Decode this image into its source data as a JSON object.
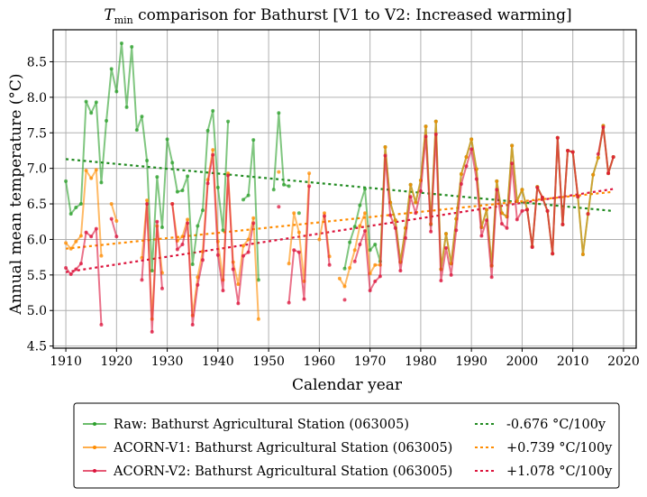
{
  "chart_data": {
    "type": "line",
    "title_main": "T",
    "title_sub": "min",
    "title_rest": " comparison for Bathurst   [V1 to V2: Increased warming]",
    "xlabel": "Calendar year",
    "ylabel": "Annual mean temperature (°C)",
    "xlim": [
      1907.5,
      2022.5
    ],
    "ylim": [
      4.47,
      8.95
    ],
    "xticks": [
      1910,
      1920,
      1930,
      1940,
      1950,
      1960,
      1970,
      1980,
      1990,
      2000,
      2010,
      2020
    ],
    "yticks": [
      4.5,
      5.0,
      5.5,
      6.0,
      6.5,
      7.0,
      7.5,
      8.0,
      8.5
    ],
    "ytick_labels": [
      "4.5",
      "5.0",
      "5.5",
      "6.0",
      "6.5",
      "7.0",
      "7.5",
      "8.0",
      "8.5"
    ],
    "grid": true,
    "legend_position": "below",
    "series": [
      {
        "name": "Raw: Bathurst Agricultural Station (063005)",
        "color": "#2ca02c",
        "x": [
          1910,
          1911,
          1912,
          1913,
          1914,
          1915,
          1916,
          1917,
          1918,
          1919,
          1920,
          1921,
          1922,
          1923,
          1924,
          1925,
          1926,
          1927,
          1928,
          1929,
          1930,
          1931,
          1932,
          1933,
          1934,
          1935,
          1936,
          1937,
          1938,
          1939,
          1940,
          1941,
          1942,
          null,
          1945,
          1946,
          1947,
          1948,
          null,
          1951,
          1952,
          1953,
          1954,
          null,
          1956,
          null,
          1965,
          1966,
          1967,
          1968,
          1969,
          1970,
          1971,
          1972,
          1973,
          1974,
          1975,
          1976,
          1977,
          1978,
          1979,
          1980,
          1981,
          1982,
          1983,
          1984,
          1985,
          1986,
          1987,
          1988,
          1989,
          1990,
          1991,
          1992,
          1993,
          1994,
          1995,
          1996,
          1997,
          1998,
          1999,
          2000,
          2001,
          2002,
          2003,
          2004,
          2005,
          2006,
          2007,
          2008,
          2009,
          2010,
          2011,
          2012,
          2013,
          2014,
          2015,
          2016,
          2017,
          2018
        ],
        "values": [
          6.82,
          6.36,
          6.45,
          6.5,
          7.94,
          7.78,
          7.93,
          6.8,
          7.67,
          8.4,
          8.08,
          8.76,
          7.86,
          8.71,
          7.54,
          7.73,
          7.11,
          5.56,
          6.88,
          6.17,
          7.41,
          7.08,
          6.67,
          6.69,
          6.89,
          5.65,
          6.19,
          6.41,
          7.53,
          7.81,
          6.73,
          6.13,
          7.66,
          null,
          6.56,
          6.62,
          7.4,
          5.43,
          null,
          6.7,
          7.78,
          6.77,
          6.75,
          null,
          6.37,
          null,
          5.59,
          5.96,
          6.18,
          6.48,
          6.71,
          5.85,
          5.93,
          5.69,
          7.3,
          6.52,
          6.27,
          5.68,
          6.16,
          6.77,
          6.52,
          6.83,
          7.59,
          6.21,
          7.66,
          5.58,
          6.08,
          5.66,
          6.29,
          6.92,
          7.16,
          7.41,
          6.99,
          6.17,
          6.42,
          5.63,
          6.82,
          6.37,
          6.32,
          7.32,
          6.54,
          6.7,
          6.42,
          5.9,
          6.74,
          6.59,
          6.4,
          5.8,
          7.43,
          6.21,
          7.25,
          7.23,
          6.6,
          5.79,
          6.36,
          6.91,
          7.15,
          7.6,
          6.93,
          7.16
        ]
      },
      {
        "name": "ACORN-V1: Bathurst Agricultural Station (063005)",
        "color": "#ff8c00",
        "x": [
          1910,
          1911,
          1912,
          1913,
          1914,
          1915,
          1916,
          1917,
          null,
          1919,
          1920,
          null,
          1925,
          1926,
          1927,
          1928,
          1929,
          null,
          1931,
          1932,
          1933,
          1934,
          1935,
          1936,
          1937,
          1938,
          1939,
          1940,
          1941,
          1942,
          1943,
          1944,
          1945,
          1946,
          1947,
          1948,
          null,
          1952,
          null,
          1954,
          1955,
          1956,
          1957,
          1958,
          null,
          1960,
          1961,
          1962,
          null,
          1964,
          1965,
          1966,
          1967,
          1968,
          1969,
          1970,
          1971,
          1972,
          1973,
          1974,
          1975,
          1976,
          1977,
          1978,
          1979,
          1980,
          1981,
          1982,
          1983,
          1984,
          1985,
          1986,
          1987,
          1988,
          1989,
          1990,
          1991,
          1992,
          1993,
          1994,
          1995,
          1996,
          1997,
          1998,
          1999,
          2000,
          2001,
          2002,
          2003,
          2004,
          2005,
          2006,
          2007,
          2008,
          2009,
          2010,
          2011,
          2012,
          2013,
          2014,
          2015,
          2016,
          2017,
          2018
        ],
        "values": [
          5.95,
          5.87,
          5.97,
          6.05,
          6.97,
          6.86,
          6.98,
          5.77,
          null,
          6.5,
          6.26,
          null,
          5.74,
          6.55,
          4.88,
          6.19,
          5.53,
          null,
          6.5,
          5.98,
          6.04,
          6.28,
          4.93,
          5.47,
          5.83,
          6.84,
          7.26,
          5.97,
          5.43,
          6.93,
          5.68,
          5.37,
          5.91,
          6.0,
          6.3,
          4.88,
          null,
          6.95,
          null,
          5.66,
          6.37,
          6.1,
          5.41,
          6.93,
          null,
          6.0,
          6.37,
          5.76,
          null,
          5.45,
          5.34,
          5.6,
          5.85,
          6.19,
          6.37,
          5.52,
          5.64,
          5.64,
          7.3,
          6.52,
          6.27,
          5.68,
          6.16,
          6.77,
          6.52,
          6.83,
          7.59,
          6.22,
          7.66,
          5.58,
          6.08,
          5.66,
          6.29,
          6.92,
          7.16,
          7.41,
          6.99,
          6.17,
          6.42,
          5.63,
          6.82,
          6.37,
          6.32,
          7.32,
          6.54,
          6.7,
          6.42,
          5.9,
          6.74,
          6.59,
          6.4,
          5.8,
          7.43,
          6.21,
          7.25,
          7.23,
          6.6,
          5.79,
          6.36,
          6.91,
          7.15,
          7.6,
          6.93,
          7.16
        ]
      },
      {
        "name": "ACORN-V2: Bathurst Agricultural Station (063005)",
        "color": "#dc143c",
        "x": [
          1910,
          1911,
          1912,
          1913,
          1914,
          1915,
          1916,
          1917,
          null,
          1919,
          1920,
          null,
          1925,
          1926,
          1927,
          1928,
          1929,
          null,
          1931,
          1932,
          1933,
          1934,
          1935,
          1936,
          1937,
          1938,
          1939,
          1940,
          1941,
          1942,
          1943,
          1944,
          1945,
          1946,
          1947,
          null,
          1952,
          null,
          1954,
          1955,
          1956,
          1957,
          1958,
          null,
          1961,
          1962,
          null,
          1965,
          null,
          1967,
          1968,
          1969,
          1970,
          1971,
          1972,
          1973,
          1974,
          1975,
          1976,
          1977,
          1978,
          1979,
          1980,
          1981,
          1982,
          1983,
          1984,
          1985,
          1986,
          1987,
          1988,
          1989,
          1990,
          1991,
          1992,
          1993,
          1994,
          1995,
          1996,
          1997,
          1998,
          1999,
          2000,
          2001,
          2002,
          2003,
          2004,
          2005,
          2006,
          2007,
          2008,
          2009,
          2010,
          2011,
          null,
          2013,
          null,
          2015,
          2016,
          2017,
          2018
        ],
        "values": [
          5.6,
          5.51,
          5.58,
          5.66,
          6.1,
          6.04,
          6.15,
          4.8,
          null,
          6.29,
          6.04,
          null,
          5.43,
          6.5,
          4.7,
          6.25,
          5.31,
          null,
          6.5,
          5.86,
          5.93,
          6.23,
          4.8,
          5.36,
          5.71,
          6.79,
          7.19,
          5.78,
          5.28,
          6.9,
          5.58,
          5.1,
          5.77,
          5.82,
          6.23,
          null,
          6.46,
          null,
          5.11,
          5.85,
          5.82,
          5.16,
          6.75,
          null,
          6.33,
          5.64,
          null,
          5.15,
          null,
          5.69,
          5.93,
          6.12,
          5.28,
          5.41,
          5.48,
          7.18,
          6.34,
          6.16,
          5.56,
          6.02,
          6.6,
          6.37,
          6.68,
          7.45,
          6.11,
          7.48,
          5.42,
          5.88,
          5.5,
          6.13,
          6.78,
          7.03,
          7.27,
          6.85,
          6.05,
          6.27,
          5.47,
          6.7,
          6.22,
          6.16,
          7.07,
          6.28,
          6.4,
          6.42,
          5.89,
          6.73,
          6.59,
          6.4,
          5.8,
          7.43,
          6.21,
          7.25,
          7.23,
          6.6,
          null,
          6.36,
          null,
          7.2,
          7.58,
          6.93,
          7.16
        ]
      }
    ],
    "trends": [
      {
        "name": "-0.676 °C/100y",
        "color": "#228b22",
        "x": [
          1910,
          2018
        ],
        "y": [
          7.13,
          6.4
        ]
      },
      {
        "name": "+0.739 °C/100y",
        "color": "#ff8c00",
        "x": [
          1910,
          2018
        ],
        "y": [
          5.87,
          6.67
        ]
      },
      {
        "name": "+1.078 °C/100y",
        "color": "#dc143c",
        "x": [
          1910,
          2018
        ],
        "y": [
          5.54,
          6.71
        ]
      }
    ]
  }
}
